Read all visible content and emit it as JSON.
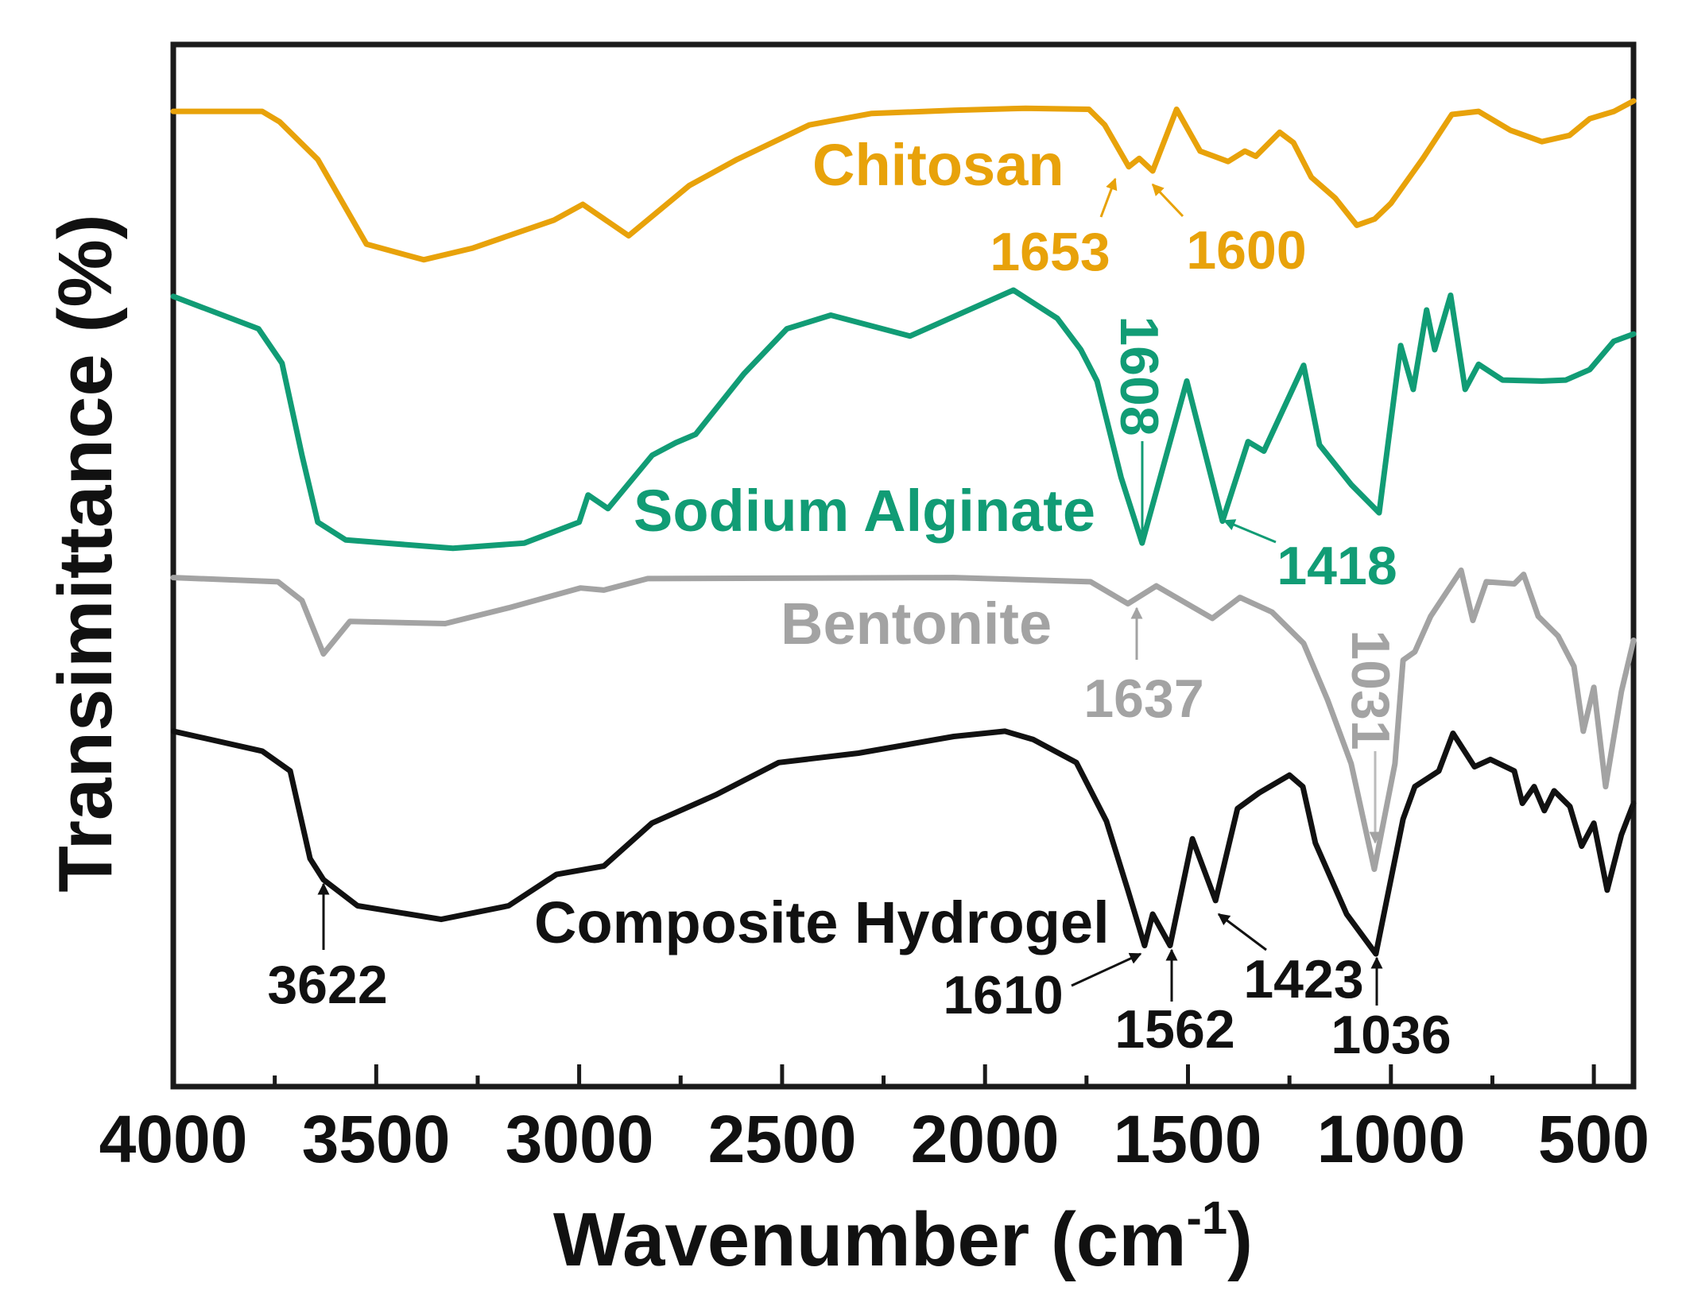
{
  "chart_data": {
    "type": "line",
    "title": "",
    "xlabel": "Wavenumber (cm⁻¹)",
    "xlabel_main": "Wavenumber (cm",
    "xlabel_sup": "-1",
    "xlabel_close": ")",
    "ylabel": "Transimittance (%)",
    "xlim": [
      4000,
      400
    ],
    "x_reversed": true,
    "ylim": [
      0,
      100
    ],
    "y_ticks_shown": false,
    "grid": false,
    "legend": "inline labels",
    "x_ticks": [
      4000,
      3500,
      3000,
      2500,
      2000,
      1500,
      1000,
      500
    ],
    "x_tick_labels": [
      "4000",
      "3500",
      "3000",
      "2500",
      "2000",
      "1500",
      "1000",
      "500"
    ],
    "series": [
      {
        "name": "Chitosan",
        "color": "#E8A20A",
        "points": [
          [
            4000,
            93.3
          ],
          [
            3781,
            93.3
          ],
          [
            3738,
            92.3
          ],
          [
            3644,
            88.7
          ],
          [
            3524,
            80.6
          ],
          [
            3383,
            79.1
          ],
          [
            3264,
            80.2
          ],
          [
            3062,
            82.9
          ],
          [
            2991,
            84.4
          ],
          [
            2878,
            81.4
          ],
          [
            2729,
            86.2
          ],
          [
            2611,
            88.7
          ],
          [
            2433,
            92.0
          ],
          [
            2279,
            93.1
          ],
          [
            2077,
            93.4
          ],
          [
            1900,
            93.6
          ],
          [
            1744,
            93.5
          ],
          [
            1705,
            92.0
          ],
          [
            1646,
            88.0
          ],
          [
            1620,
            88.8
          ],
          [
            1587,
            87.6
          ],
          [
            1528,
            93.5
          ],
          [
            1470,
            89.5
          ],
          [
            1401,
            88.5
          ],
          [
            1360,
            89.5
          ],
          [
            1333,
            89.0
          ],
          [
            1274,
            91.3
          ],
          [
            1240,
            90.3
          ],
          [
            1196,
            87.0
          ],
          [
            1137,
            85.0
          ],
          [
            1084,
            82.4
          ],
          [
            1040,
            83.0
          ],
          [
            1000,
            84.5
          ],
          [
            921,
            88.8
          ],
          [
            850,
            93.0
          ],
          [
            784,
            93.3
          ],
          [
            706,
            91.5
          ],
          [
            628,
            90.4
          ],
          [
            560,
            91.0
          ],
          [
            510,
            92.6
          ],
          [
            450,
            93.3
          ],
          [
            402,
            94.3
          ]
        ]
      },
      {
        "name": "Sodium Alginate",
        "color": "#119C75",
        "points": [
          [
            4000,
            75.6
          ],
          [
            3790,
            72.5
          ],
          [
            3732,
            69.2
          ],
          [
            3683,
            60.4
          ],
          [
            3644,
            54.0
          ],
          [
            3575,
            52.3
          ],
          [
            3311,
            51.5
          ],
          [
            3135,
            52.0
          ],
          [
            3000,
            54.0
          ],
          [
            2978,
            56.6
          ],
          [
            2929,
            55.3
          ],
          [
            2820,
            60.4
          ],
          [
            2762,
            61.6
          ],
          [
            2713,
            62.4
          ],
          [
            2594,
            68.2
          ],
          [
            2488,
            72.5
          ],
          [
            2380,
            73.8
          ],
          [
            2185,
            71.8
          ],
          [
            1930,
            76.2
          ],
          [
            1822,
            73.5
          ],
          [
            1764,
            70.5
          ],
          [
            1724,
            67.5
          ],
          [
            1665,
            58.3
          ],
          [
            1613,
            52.0
          ],
          [
            1503,
            67.5
          ],
          [
            1415,
            54.1
          ],
          [
            1352,
            61.7
          ],
          [
            1313,
            60.8
          ],
          [
            1215,
            69.0
          ],
          [
            1176,
            61.4
          ],
          [
            1098,
            57.6
          ],
          [
            1029,
            54.9
          ],
          [
            976,
            70.9
          ],
          [
            945,
            66.7
          ],
          [
            912,
            74.3
          ],
          [
            892,
            70.5
          ],
          [
            853,
            75.7
          ],
          [
            817,
            66.7
          ],
          [
            784,
            69.1
          ],
          [
            725,
            67.6
          ],
          [
            628,
            67.5
          ],
          [
            569,
            67.6
          ],
          [
            510,
            68.6
          ],
          [
            451,
            71.3
          ],
          [
            402,
            72.0
          ]
        ]
      },
      {
        "name": "Bentonite",
        "color": "#A3A3A3",
        "points": [
          [
            4000,
            48.7
          ],
          [
            3742,
            48.3
          ],
          [
            3683,
            46.5
          ],
          [
            3630,
            41.4
          ],
          [
            3565,
            44.5
          ],
          [
            3330,
            44.3
          ],
          [
            3174,
            45.8
          ],
          [
            2997,
            47.7
          ],
          [
            2939,
            47.5
          ],
          [
            2831,
            48.6
          ],
          [
            2077,
            48.7
          ],
          [
            1740,
            48.3
          ],
          [
            1648,
            46.2
          ],
          [
            1578,
            47.9
          ],
          [
            1440,
            44.8
          ],
          [
            1372,
            46.8
          ],
          [
            1293,
            45.4
          ],
          [
            1215,
            42.4
          ],
          [
            1156,
            37.0
          ],
          [
            1098,
            30.9
          ],
          [
            1041,
            20.8
          ],
          [
            990,
            30.9
          ],
          [
            970,
            40.8
          ],
          [
            941,
            41.6
          ],
          [
            902,
            45.0
          ],
          [
            827,
            49.4
          ],
          [
            798,
            44.6
          ],
          [
            765,
            48.3
          ],
          [
            696,
            48.1
          ],
          [
            673,
            49.0
          ],
          [
            637,
            45.0
          ],
          [
            588,
            43.1
          ],
          [
            549,
            40.2
          ],
          [
            526,
            34.0
          ],
          [
            500,
            38.2
          ],
          [
            471,
            28.7
          ],
          [
            432,
            37.8
          ],
          [
            402,
            42.7
          ]
        ]
      },
      {
        "name": "Composite Hydrogel",
        "color": "#111111",
        "points": [
          [
            4000,
            34.0
          ],
          [
            3781,
            32.1
          ],
          [
            3712,
            30.2
          ],
          [
            3663,
            21.8
          ],
          [
            3630,
            19.8
          ],
          [
            3546,
            17.3
          ],
          [
            3340,
            16.0
          ],
          [
            3174,
            17.3
          ],
          [
            3056,
            20.3
          ],
          [
            2939,
            21.1
          ],
          [
            2821,
            25.2
          ],
          [
            2664,
            27.9
          ],
          [
            2508,
            31.0
          ],
          [
            2312,
            31.9
          ],
          [
            2077,
            33.5
          ],
          [
            1951,
            34.0
          ],
          [
            1881,
            33.2
          ],
          [
            1775,
            31.0
          ],
          [
            1701,
            25.4
          ],
          [
            1648,
            18.8
          ],
          [
            1607,
            13.5
          ],
          [
            1587,
            16.5
          ],
          [
            1544,
            13.5
          ],
          [
            1489,
            23.7
          ],
          [
            1432,
            17.8
          ],
          [
            1378,
            26.6
          ],
          [
            1325,
            28.1
          ],
          [
            1250,
            29.8
          ],
          [
            1217,
            28.7
          ],
          [
            1186,
            23.3
          ],
          [
            1109,
            16.5
          ],
          [
            1037,
            12.7
          ],
          [
            970,
            25.6
          ],
          [
            941,
            28.7
          ],
          [
            882,
            30.2
          ],
          [
            847,
            33.8
          ],
          [
            794,
            30.6
          ],
          [
            755,
            31.3
          ],
          [
            696,
            30.2
          ],
          [
            676,
            27.1
          ],
          [
            647,
            28.7
          ],
          [
            622,
            26.4
          ],
          [
            598,
            28.3
          ],
          [
            559,
            26.8
          ],
          [
            530,
            23.0
          ],
          [
            500,
            25.2
          ],
          [
            467,
            18.8
          ],
          [
            432,
            24.1
          ],
          [
            402,
            27.1
          ]
        ]
      }
    ],
    "series_labels": {
      "chitosan": "Chitosan",
      "sodium_alginate": "Sodium Alginate",
      "bentonite": "Bentonite",
      "composite": "Composite Hydrogel"
    },
    "annotations": [
      {
        "series": "Chitosan",
        "label": "1653"
      },
      {
        "series": "Chitosan",
        "label": "1600"
      },
      {
        "series": "Sodium Alginate",
        "label": "1608"
      },
      {
        "series": "Sodium Alginate",
        "label": "1418"
      },
      {
        "series": "Bentonite",
        "label": "1637"
      },
      {
        "series": "Bentonite",
        "label": "1031"
      },
      {
        "series": "Composite Hydrogel",
        "label": "3622"
      },
      {
        "series": "Composite Hydrogel",
        "label": "1610"
      },
      {
        "series": "Composite Hydrogel",
        "label": "1562"
      },
      {
        "series": "Composite Hydrogel",
        "label": "1423"
      },
      {
        "series": "Composite Hydrogel",
        "label": "1036"
      }
    ]
  }
}
